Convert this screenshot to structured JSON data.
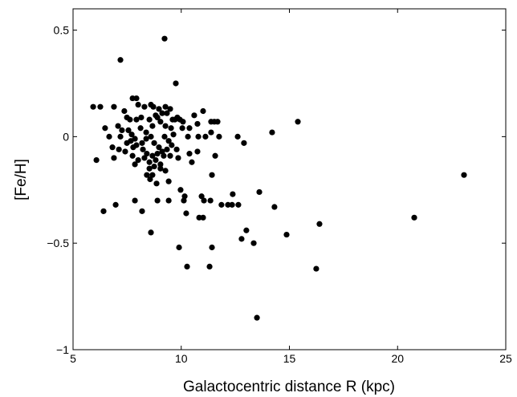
{
  "chart_data": {
    "type": "scatter",
    "xlabel": "Galactocentric distance R (kpc)",
    "ylabel": "[Fe/H]",
    "color": "#000000",
    "xlim": [
      5,
      25
    ],
    "xticks": [
      5,
      10,
      15,
      20,
      25
    ],
    "ylim": [
      -1,
      0.6
    ],
    "yticks": [
      {
        "value": -1,
        "label": "−1"
      },
      {
        "value": -0.5,
        "label": "−0.5"
      },
      0,
      0.5
    ],
    "x": [
      9.23,
      7.19,
      9.75,
      6.41,
      23.07,
      20.77,
      15.39,
      14.2,
      13.5,
      13.61,
      14.31,
      14.87,
      16.24,
      16.39,
      13.01,
      12.79,
      13.35,
      12.9,
      12.61,
      12.64,
      12.38,
      12.35,
      12.16,
      11.86,
      11.42,
      11.38,
      11.53,
      11.68,
      11.38,
      11.75,
      11.57,
      11.35,
      11.42,
      11.31,
      10.27,
      9.9,
      10.83,
      11.01,
      11.05,
      10.94,
      10.23,
      10.16,
      10.12,
      9.97,
      9.42,
      8.9,
      8.6,
      7.86,
      8.19,
      6.97,
      9.42,
      8.67,
      8.41,
      7.86,
      6.89,
      8.86,
      9.86,
      10.49,
      10.38,
      9.79,
      10.75,
      10.31,
      10.79,
      11.12,
      10.38,
      10.75,
      10.08,
      10.6,
      11.01,
      9.82,
      6.89,
      7.37,
      7.75,
      7.93,
      8.01,
      8.3,
      8.71,
      8.97,
      9.27,
      9.49,
      8.6,
      7.08,
      7.26,
      7.56,
      7.71,
      7.86,
      8.12,
      8.38,
      8.53,
      8.67,
      8.9,
      9.04,
      9.27,
      9.53,
      9.71,
      7.49,
      7.63,
      7.93,
      8.15,
      8.82,
      9.12,
      9.34,
      9.6,
      7.19,
      7.49,
      7.67,
      7.93,
      8.19,
      8.38,
      8.6,
      8.75,
      8.97,
      9.23,
      9.42,
      9.64,
      7.12,
      7.41,
      7.78,
      8.23,
      8.41,
      8.67,
      8.9,
      9.12,
      9.34,
      9.56,
      7.75,
      8.01,
      8.3,
      8.53,
      8.82,
      9.04,
      9.19,
      9.49,
      6.67,
      6.82,
      6.48,
      6.08,
      8.53,
      8.75,
      9.04,
      9.27,
      8.56,
      5.93,
      6.26,
      9.94,
      10.05
    ],
    "values": [
      0.46,
      0.36,
      0.25,
      -0.35,
      -0.18,
      -0.38,
      0.07,
      0.02,
      -0.85,
      -0.26,
      -0.33,
      -0.46,
      -0.62,
      -0.41,
      -0.44,
      -0.48,
      -0.5,
      -0.03,
      0.0,
      -0.32,
      -0.27,
      -0.32,
      -0.32,
      -0.32,
      -0.18,
      0.07,
      0.07,
      0.07,
      0.02,
      0.0,
      -0.09,
      -0.3,
      -0.52,
      -0.61,
      -0.61,
      -0.52,
      -0.38,
      -0.38,
      -0.3,
      -0.28,
      -0.36,
      -0.28,
      -0.3,
      -0.25,
      -0.3,
      -0.3,
      -0.45,
      -0.3,
      -0.35,
      -0.32,
      -0.21,
      -0.18,
      -0.18,
      -0.13,
      -0.1,
      -0.22,
      -0.1,
      -0.12,
      -0.08,
      -0.06,
      -0.07,
      0.0,
      0.0,
      0.0,
      0.04,
      0.06,
      0.07,
      0.1,
      0.12,
      0.09,
      0.14,
      0.12,
      0.18,
      0.18,
      0.15,
      0.14,
      0.14,
      0.13,
      0.14,
      0.13,
      0.15,
      0.05,
      0.03,
      0.03,
      0.01,
      -0.01,
      0.04,
      0.02,
      0.08,
      0.05,
      0.09,
      0.07,
      0.05,
      0.04,
      0.08,
      0.09,
      0.08,
      0.08,
      0.09,
      0.1,
      0.11,
      0.11,
      0.08,
      0.0,
      -0.03,
      -0.02,
      -0.04,
      -0.03,
      -0.01,
      0.0,
      -0.03,
      -0.05,
      0.0,
      -0.02,
      0.01,
      -0.06,
      -0.07,
      -0.05,
      -0.06,
      -0.08,
      -0.09,
      -0.08,
      -0.07,
      -0.06,
      -0.04,
      -0.09,
      -0.11,
      -0.1,
      -0.12,
      -0.11,
      -0.13,
      -0.09,
      -0.09,
      0.0,
      -0.05,
      0.04,
      -0.11,
      -0.15,
      -0.14,
      -0.15,
      -0.16,
      -0.2,
      0.14,
      0.14,
      0.08,
      0.04
    ]
  }
}
